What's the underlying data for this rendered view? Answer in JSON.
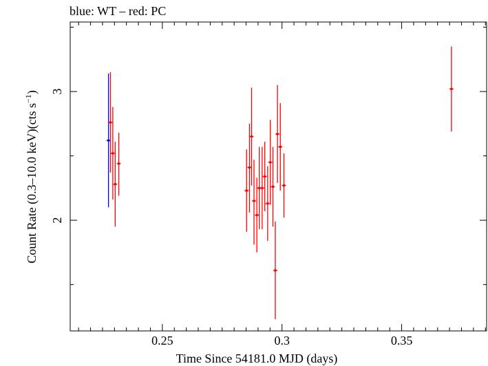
{
  "chart_data": {
    "type": "scatter",
    "title": "blue: WT – red: PC",
    "xlabel": "Time Since 54181.0 MJD (days)",
    "ylabel_main": "Count Rate (0.3–10.0 keV)(cts s",
    "ylabel_sup": "−1",
    "ylabel_close": ")",
    "xlim": [
      0.2115,
      0.3855
    ],
    "ylim": [
      1.14,
      3.54
    ],
    "xticks": [
      {
        "value": 0.25,
        "label": "0.25"
      },
      {
        "value": 0.3,
        "label": "0.3"
      },
      {
        "value": 0.35,
        "label": "0.35"
      }
    ],
    "yticks": [
      {
        "value": 2,
        "label": "2"
      },
      {
        "value": 3,
        "label": "3"
      }
    ],
    "series": [
      {
        "name": "WT",
        "color": "#0000ff",
        "points": [
          {
            "x": 0.2275,
            "y": 2.62,
            "lo": 2.1,
            "hi": 3.14
          }
        ]
      },
      {
        "name": "PC",
        "color": "#ff0000",
        "points": [
          {
            "x": 0.2283,
            "y": 2.76,
            "lo": 2.37,
            "hi": 3.15
          },
          {
            "x": 0.2293,
            "y": 2.52,
            "lo": 2.16,
            "hi": 2.88
          },
          {
            "x": 0.2303,
            "y": 2.28,
            "lo": 1.95,
            "hi": 2.61
          },
          {
            "x": 0.2318,
            "y": 2.44,
            "lo": 2.19,
            "hi": 2.68
          },
          {
            "x": 0.2852,
            "y": 2.23,
            "lo": 1.91,
            "hi": 2.55
          },
          {
            "x": 0.2864,
            "y": 2.41,
            "lo": 2.06,
            "hi": 2.75
          },
          {
            "x": 0.2873,
            "y": 2.65,
            "lo": 2.27,
            "hi": 3.03
          },
          {
            "x": 0.2883,
            "y": 2.15,
            "lo": 1.81,
            "hi": 2.47
          },
          {
            "x": 0.2895,
            "y": 2.04,
            "lo": 1.75,
            "hi": 2.33
          },
          {
            "x": 0.2905,
            "y": 2.25,
            "lo": 1.93,
            "hi": 2.57
          },
          {
            "x": 0.2917,
            "y": 2.25,
            "lo": 1.93,
            "hi": 2.57
          },
          {
            "x": 0.2928,
            "y": 2.34,
            "lo": 2.07,
            "hi": 2.61
          },
          {
            "x": 0.294,
            "y": 2.13,
            "lo": 1.84,
            "hi": 2.42
          },
          {
            "x": 0.2951,
            "y": 2.45,
            "lo": 2.12,
            "hi": 2.78
          },
          {
            "x": 0.2962,
            "y": 2.26,
            "lo": 1.95,
            "hi": 2.57
          },
          {
            "x": 0.2972,
            "y": 1.61,
            "lo": 1.23,
            "hi": 1.99
          },
          {
            "x": 0.2981,
            "y": 2.67,
            "lo": 2.29,
            "hi": 3.05
          },
          {
            "x": 0.2993,
            "y": 2.57,
            "lo": 2.23,
            "hi": 2.91
          },
          {
            "x": 0.3008,
            "y": 2.27,
            "lo": 2.02,
            "hi": 2.52
          },
          {
            "x": 0.3708,
            "y": 3.02,
            "lo": 2.69,
            "hi": 3.35
          }
        ]
      }
    ]
  }
}
